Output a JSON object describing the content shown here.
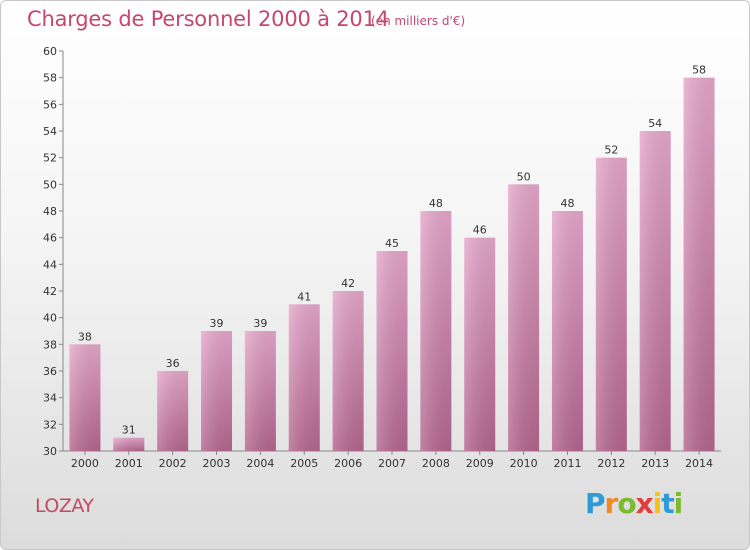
{
  "chart_data": {
    "type": "bar",
    "title": "Charges de Personnel 2000 à 2014",
    "subtitle": "(en milliers d'€)",
    "categories": [
      "2000",
      "2001",
      "2002",
      "2003",
      "2004",
      "2005",
      "2006",
      "2007",
      "2008",
      "2009",
      "2010",
      "2011",
      "2012",
      "2013",
      "2014"
    ],
    "values": [
      38,
      31,
      36,
      39,
      39,
      41,
      42,
      45,
      48,
      46,
      50,
      48,
      52,
      54,
      58
    ],
    "ylim": [
      30,
      60
    ],
    "yticks": [
      30,
      32,
      34,
      36,
      38,
      40,
      42,
      44,
      46,
      48,
      50,
      52,
      54,
      56,
      58,
      60
    ],
    "grid": false,
    "bar_color": "#d98ab6"
  },
  "commune": "LOZAY",
  "logo": {
    "letters": [
      "P",
      "r",
      "o",
      "x",
      "i",
      "t",
      "i"
    ],
    "colors": [
      "#2f9ad8",
      "#f08a24",
      "#7cba2f",
      "#e23b3b",
      "#f4c21b",
      "#2f9ad8",
      "#7cba2f"
    ]
  }
}
